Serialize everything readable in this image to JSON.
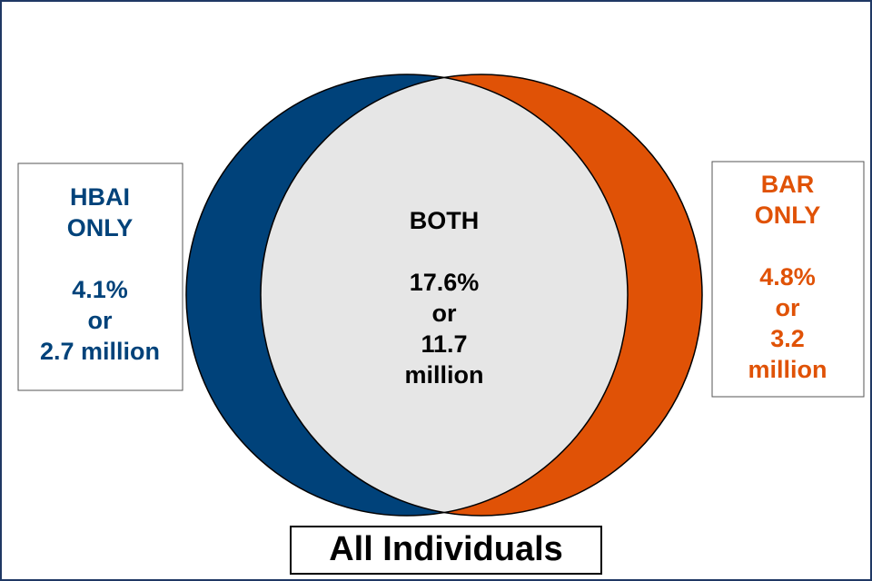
{
  "left": {
    "lines": [
      "HBAI",
      "ONLY",
      "",
      "4.1%",
      "or",
      "2.7 million"
    ]
  },
  "center": {
    "lines": [
      "BOTH",
      "",
      "17.6%",
      "or",
      "11.7",
      "million"
    ]
  },
  "right": {
    "lines": [
      "BAR",
      "ONLY",
      "",
      "4.8%",
      "or",
      "3.2",
      "million"
    ]
  },
  "footer": {
    "title": "All Individuals"
  }
}
